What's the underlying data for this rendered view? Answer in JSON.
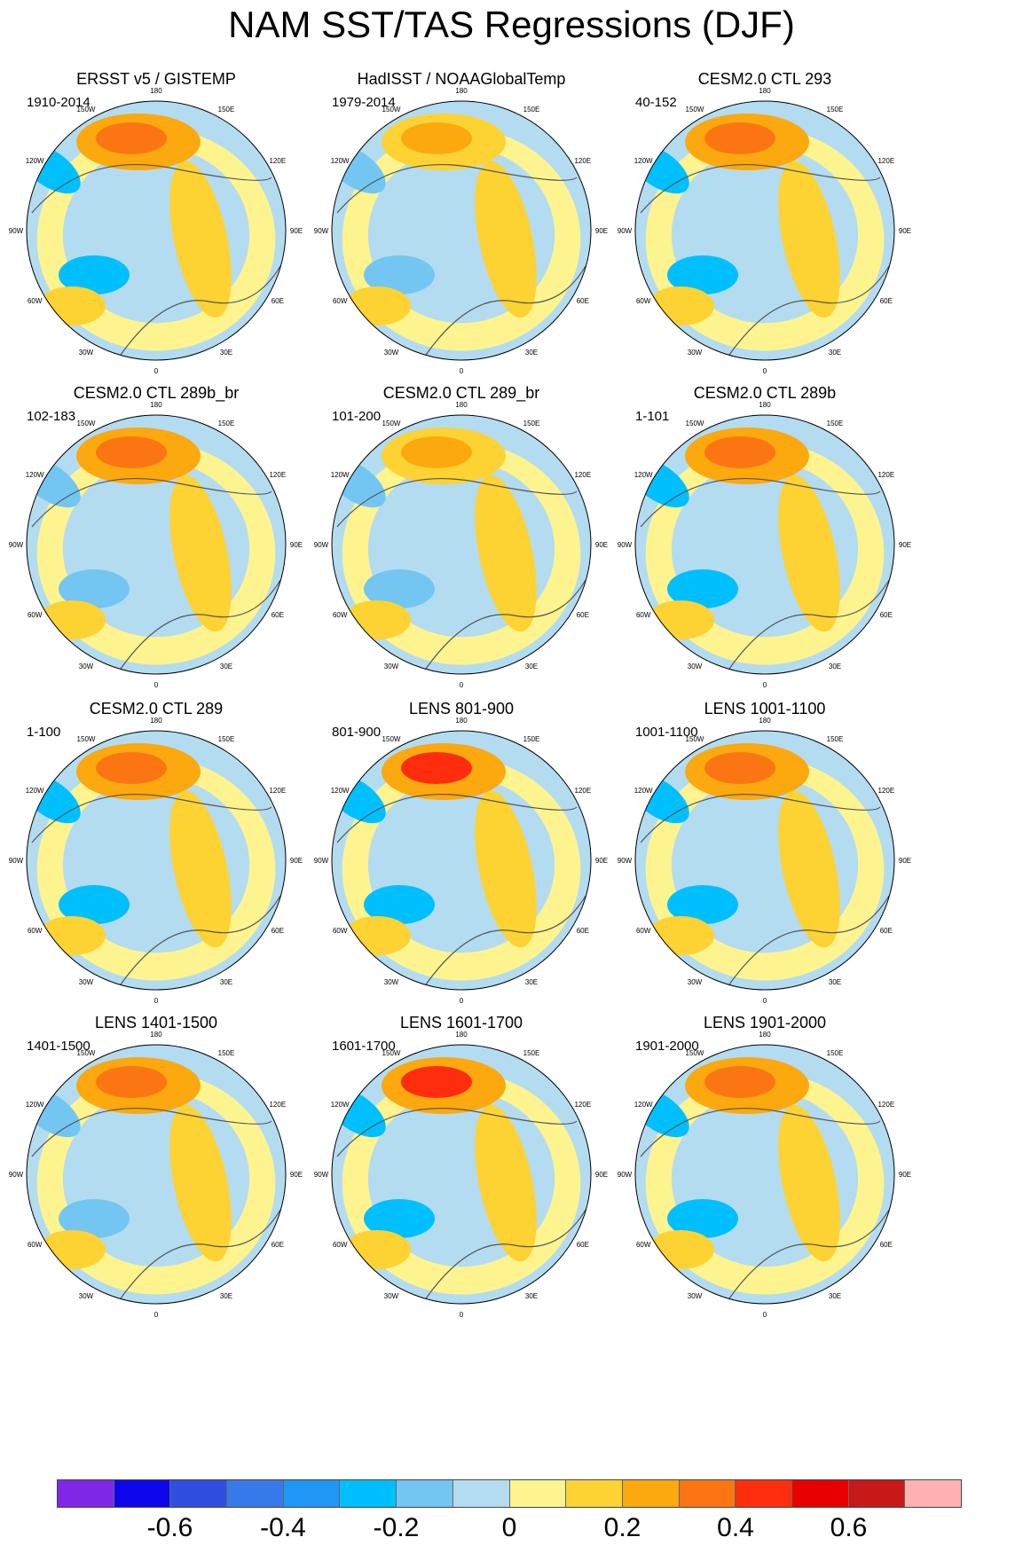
{
  "figure": {
    "title": "NAM SST/TAS Regressions (DJF)"
  },
  "chart_data": {
    "type": "polar-map-panels",
    "projection": "north polar stereographic",
    "season": "DJF",
    "lon_labels": [
      "180",
      "150E",
      "120E",
      "90E",
      "60E",
      "30E",
      "0",
      "30W",
      "60W",
      "90W",
      "120W",
      "150W"
    ],
    "panels": [
      {
        "title": "ERSST v5 / GISTEMP",
        "period": "1910-2014",
        "pacific_max": 0.3,
        "atlantic_min": -0.3
      },
      {
        "title": "HadISST / NOAAGlobalTemp",
        "period": "1979-2014",
        "pacific_max": 0.2,
        "atlantic_min": -0.2
      },
      {
        "title": "CESM2.0 CTL 293",
        "period": "40-152",
        "pacific_max": 0.3,
        "atlantic_min": -0.3
      },
      {
        "title": "CESM2.0 CTL 289b_br",
        "period": "102-183",
        "pacific_max": 0.3,
        "atlantic_min": -0.2
      },
      {
        "title": "CESM2.0 CTL 289_br",
        "period": "101-200",
        "pacific_max": 0.2,
        "atlantic_min": -0.2
      },
      {
        "title": "CESM2.0 CTL 289b",
        "period": "1-101",
        "pacific_max": 0.3,
        "atlantic_min": -0.3
      },
      {
        "title": "CESM2.0 CTL 289",
        "period": "1-100",
        "pacific_max": 0.3,
        "atlantic_min": -0.3
      },
      {
        "title": "LENS 801-900",
        "period": "801-900",
        "pacific_max": 0.4,
        "atlantic_min": -0.3
      },
      {
        "title": "LENS 1001-1100",
        "period": "1001-1100",
        "pacific_max": 0.3,
        "atlantic_min": -0.3
      },
      {
        "title": "LENS 1401-1500",
        "period": "1401-1500",
        "pacific_max": 0.3,
        "atlantic_min": -0.2
      },
      {
        "title": "LENS 1601-1700",
        "period": "1601-1700",
        "pacific_max": 0.4,
        "atlantic_min": -0.3
      },
      {
        "title": "LENS 1901-2000",
        "period": "1901-2000",
        "pacific_max": 0.3,
        "atlantic_min": -0.3
      }
    ],
    "colorbar": {
      "colors": [
        "#7f27e6",
        "#0d06ec",
        "#2f4fe0",
        "#3779ea",
        "#1e97f5",
        "#00bffe",
        "#73c6f2",
        "#b3dcf1",
        "#fdf490",
        "#fdd233",
        "#fca80f",
        "#fb7613",
        "#fe2d0d",
        "#e80000",
        "#c81818",
        "#feb1b1"
      ],
      "levels": [
        -0.7,
        -0.6,
        -0.5,
        -0.4,
        -0.3,
        -0.2,
        -0.1,
        0,
        0.1,
        0.2,
        0.3,
        0.4,
        0.5,
        0.6,
        0.7
      ],
      "labels": [
        {
          "text": "-0.6",
          "value": -0.6
        },
        {
          "text": "-0.4",
          "value": -0.4
        },
        {
          "text": "-0.2",
          "value": -0.2
        },
        {
          "text": "0",
          "value": 0
        },
        {
          "text": "0.2",
          "value": 0.2
        },
        {
          "text": "0.4",
          "value": 0.4
        },
        {
          "text": "0.6",
          "value": 0.6
        }
      ]
    }
  }
}
